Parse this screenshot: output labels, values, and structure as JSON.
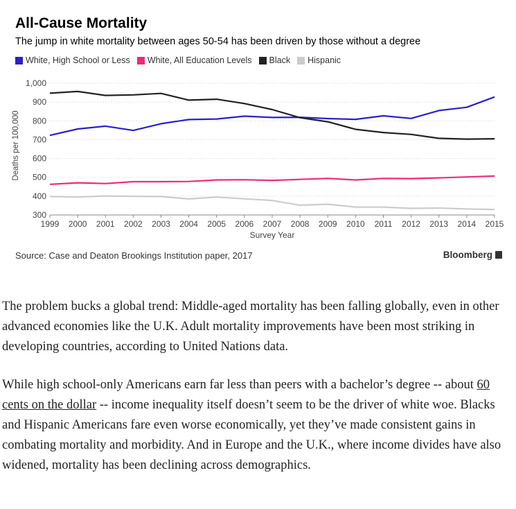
{
  "chart_data": {
    "type": "line",
    "title": "All-Cause Mortality",
    "subtitle": "The jump in white mortality between ages 50-54 has been driven by those without a degree",
    "xlabel": "Survey Year",
    "ylabel": "Deaths per 100,000",
    "ylim": [
      300,
      1000
    ],
    "yticks": [
      "300",
      "400",
      "500",
      "600",
      "700",
      "800",
      "900",
      "1,000"
    ],
    "x": [
      1999,
      2000,
      2001,
      2002,
      2003,
      2004,
      2005,
      2006,
      2007,
      2008,
      2009,
      2010,
      2011,
      2012,
      2013,
      2014,
      2015
    ],
    "legend_position": "top-left",
    "grid": "horizontal",
    "series": [
      {
        "name": "White, High School or Less",
        "color": "#2b1fc9",
        "values": [
          723,
          757,
          772,
          749,
          785,
          807,
          810,
          825,
          818,
          819,
          812,
          808,
          827,
          813,
          855,
          872,
          927
        ]
      },
      {
        "name": "White, All Education Levels",
        "color": "#ee2b7a",
        "values": [
          463,
          471,
          467,
          477,
          477,
          478,
          486,
          487,
          484,
          489,
          494,
          486,
          494,
          493,
          497,
          502,
          507
        ]
      },
      {
        "name": "Black",
        "color": "#222222",
        "values": [
          947,
          956,
          935,
          938,
          946,
          910,
          915,
          892,
          860,
          817,
          795,
          755,
          738,
          728,
          707,
          703,
          705
        ]
      },
      {
        "name": "Hispanic",
        "color": "#cccccc",
        "values": [
          398,
          395,
          401,
          399,
          398,
          385,
          395,
          386,
          377,
          352,
          357,
          342,
          342,
          335,
          337,
          332,
          329
        ]
      }
    ],
    "source": "Source: Case and Deaton Brookings Institution paper, 2017",
    "brand": "Bloomberg"
  },
  "article": {
    "p1": "The problem bucks a global trend: Middle-aged mortality has been falling globally, even in other advanced economies like the U.K. Adult mortality improvements have been most striking in developing countries, according to United Nations data.",
    "p2_before": "While high school-only Americans earn far less than peers with a bachelor’s degree -- about ",
    "p2_link": "60 cents on the dollar",
    "p2_after": " -- income inequality itself doesn’t seem to be the driver of white woe. Blacks and Hispanic Americans fare even worse economically, yet they’ve made consistent gains in combating mortality and morbidity. And in Europe and the U.K., where income divides have also widened, mortality has been declining across demographics."
  }
}
